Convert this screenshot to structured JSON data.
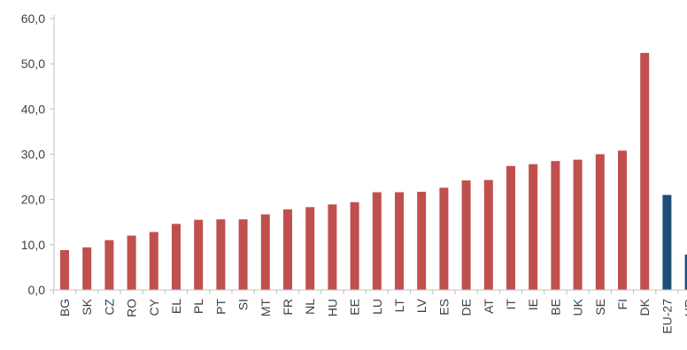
{
  "chart_data": {
    "type": "bar",
    "title": "",
    "xlabel": "",
    "ylabel": "",
    "ylim": [
      0,
      60
    ],
    "yticks": [
      "0,0",
      "10,0",
      "20,0",
      "30,0",
      "40,0",
      "50,0",
      "60,0"
    ],
    "grid": false,
    "legend": "none",
    "categories": [
      "BG",
      "SK",
      "CZ",
      "RO",
      "CY",
      "EL",
      "PL",
      "PT",
      "SI",
      "MT",
      "FR",
      "NL",
      "HU",
      "EE",
      "LU",
      "LT",
      "LV",
      "ES",
      "DE",
      "AT",
      "IT",
      "IE",
      "BE",
      "UK",
      "SE",
      "FI",
      "DK",
      "EU-27",
      "HR"
    ],
    "values": [
      8.8,
      9.4,
      11.0,
      12.0,
      12.8,
      14.6,
      15.5,
      15.6,
      15.6,
      16.7,
      17.8,
      18.3,
      18.9,
      19.4,
      21.6,
      21.6,
      21.7,
      22.6,
      24.2,
      24.3,
      27.4,
      27.8,
      28.5,
      28.8,
      30.0,
      30.8,
      52.4,
      21.0,
      7.8
    ],
    "colors": {
      "member": "#c0504d",
      "aggregate": "#1f4e79",
      "axis": "#bfbfbf",
      "text": "#404040"
    },
    "highlight": [
      "EU-27",
      "HR"
    ]
  }
}
